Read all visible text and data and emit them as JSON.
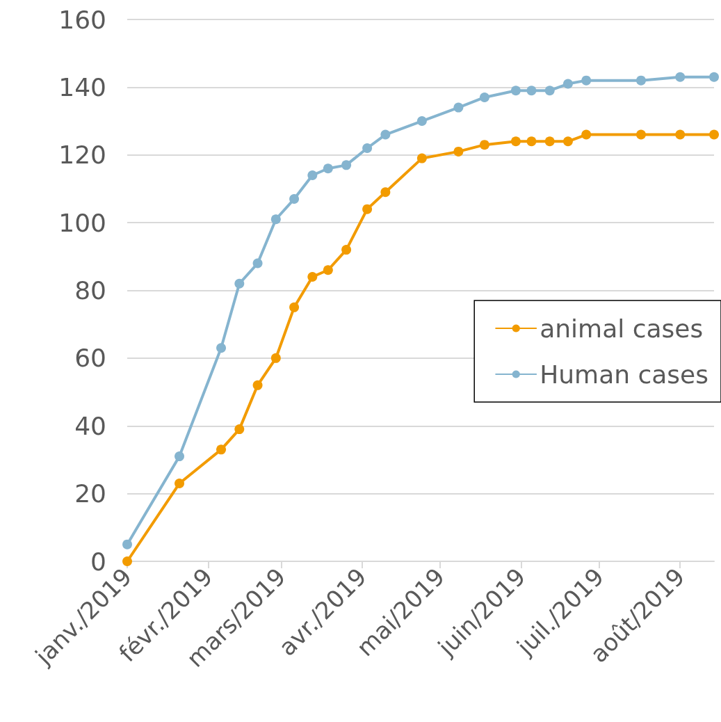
{
  "chart_data": {
    "type": "line",
    "x": [
      "2019-01-01",
      "2019-01-21",
      "2019-02-06",
      "2019-02-13",
      "2019-02-20",
      "2019-02-27",
      "2019-03-06",
      "2019-03-13",
      "2019-03-19",
      "2019-03-26",
      "2019-04-03",
      "2019-04-10",
      "2019-04-24",
      "2019-05-08",
      "2019-05-18",
      "2019-05-30",
      "2019-06-05",
      "2019-06-12",
      "2019-06-19",
      "2019-06-26",
      "2019-07-17",
      "2019-08-01",
      "2019-08-14"
    ],
    "series": [
      {
        "name": "animal cases",
        "color": "#f29b00",
        "values": [
          0,
          23,
          33,
          39,
          52,
          60,
          75,
          84,
          86,
          92,
          104,
          109,
          119,
          121,
          123,
          124,
          124,
          124,
          124,
          126,
          126,
          126,
          126
        ]
      },
      {
        "name": "Human cases",
        "color": "#85b4cf",
        "values": [
          5,
          31,
          63,
          82,
          88,
          101,
          107,
          114,
          116,
          117,
          122,
          126,
          130,
          134,
          137,
          139,
          139,
          139,
          141,
          142,
          142,
          143,
          143
        ]
      }
    ],
    "xlim": [
      "2019-01-01",
      "2019-08-14"
    ],
    "xticks": [
      {
        "value": "2019-01-01",
        "label": "janv./2019"
      },
      {
        "value": "2019-02-01",
        "label": "févr./2019"
      },
      {
        "value": "2019-03-01",
        "label": "mars/2019"
      },
      {
        "value": "2019-04-01",
        "label": "avr./2019"
      },
      {
        "value": "2019-05-01",
        "label": "mai/2019"
      },
      {
        "value": "2019-06-01",
        "label": "juin/2019"
      },
      {
        "value": "2019-07-01",
        "label": "juil./2019"
      },
      {
        "value": "2019-08-01",
        "label": "août/2019"
      }
    ],
    "ylim": [
      0,
      160
    ],
    "yticks": [
      0,
      20,
      40,
      60,
      80,
      100,
      120,
      140,
      160
    ],
    "grid": "y",
    "legend": "right",
    "marker": "circle",
    "line_style": "solid"
  }
}
